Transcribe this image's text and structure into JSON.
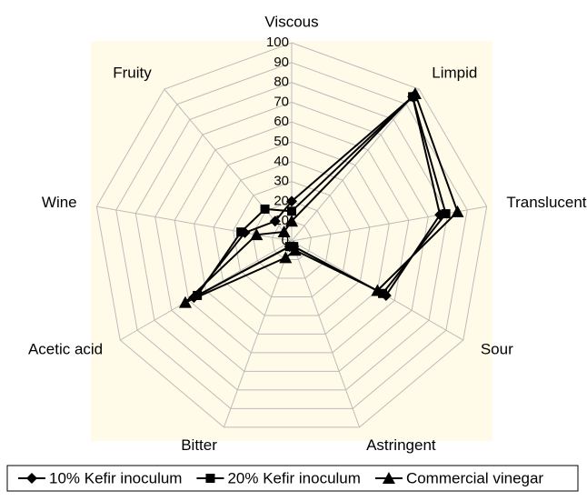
{
  "chart_data": {
    "type": "radar",
    "categories": [
      "Viscous",
      "Limpid",
      "Translucent",
      "Sour",
      "Astringent",
      "Bitter",
      "Acetic acid",
      "Wine",
      "Fruity"
    ],
    "series": [
      {
        "name": "10% Kefir inoculum",
        "color": "#000000",
        "marker": "diamond",
        "values": [
          20,
          95,
          76,
          55,
          3,
          3,
          57,
          24,
          13
        ]
      },
      {
        "name": "20% Kefir inoculum",
        "color": "#000000",
        "marker": "square",
        "values": [
          15,
          95,
          79,
          53,
          3,
          3,
          55,
          26,
          21
        ]
      },
      {
        "name": "Commercial vinegar",
        "color": "#000000",
        "marker": "triangle",
        "values": [
          10,
          97,
          85,
          50,
          5,
          9,
          62,
          18,
          6
        ]
      }
    ],
    "ylim": [
      0,
      100
    ],
    "yticks": [
      0,
      10,
      20,
      30,
      40,
      50,
      60,
      70,
      80,
      90,
      100
    ],
    "grid": true,
    "legend": "bottom",
    "background": "#fffbe8"
  }
}
